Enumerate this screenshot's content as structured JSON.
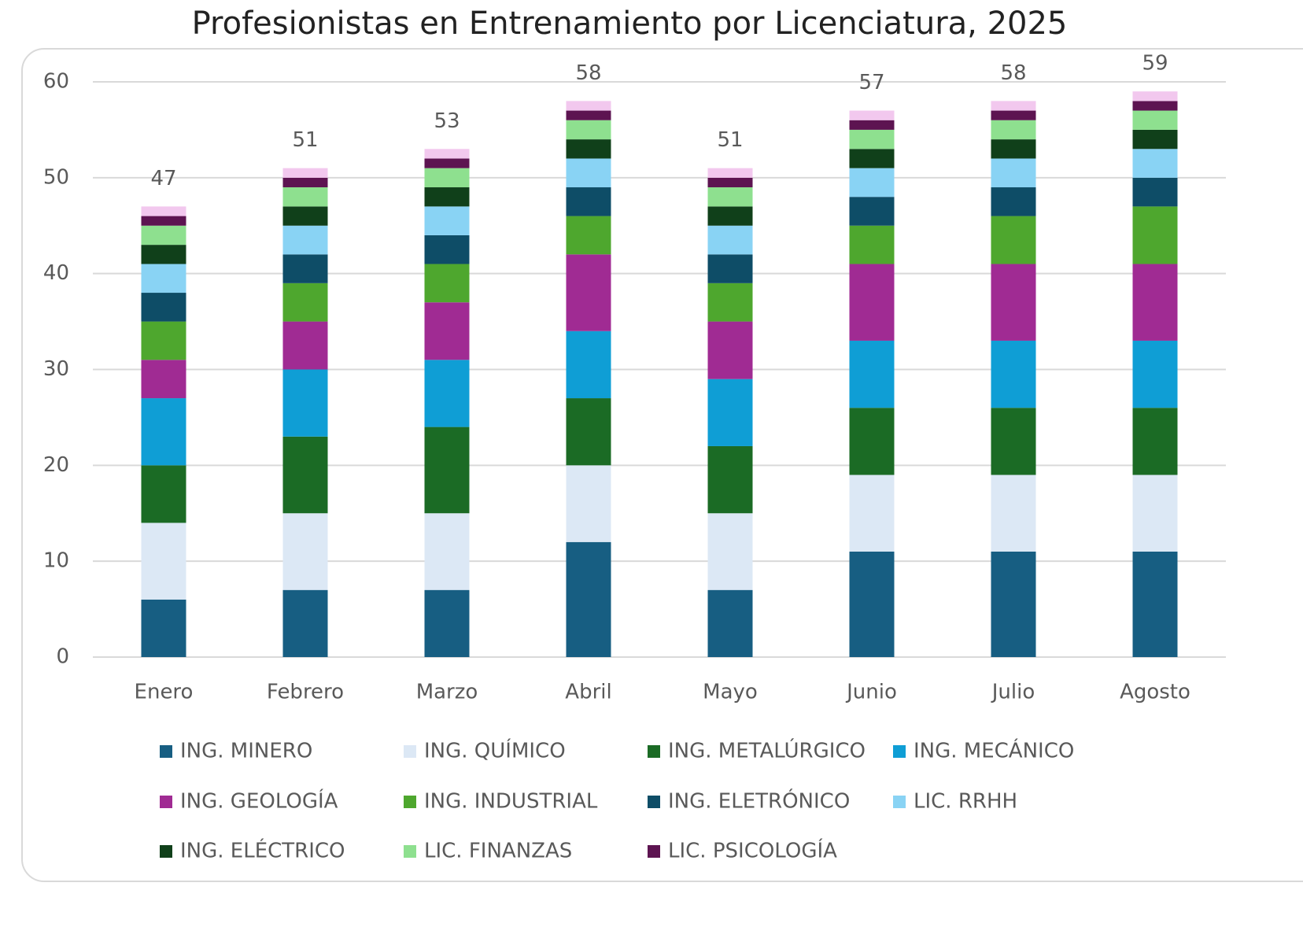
{
  "chart_data": {
    "type": "stacked_bar",
    "title": "Profesionistas en Entrenamiento por Licenciatura, 2025",
    "categories": [
      "Enero",
      "Febrero",
      "Marzo",
      "Abril",
      "Mayo",
      "Junio",
      "Julio",
      "Agosto"
    ],
    "series": [
      {
        "name": "ING. MINERO",
        "color": "#175e82",
        "values": [
          6,
          7,
          7,
          12,
          7,
          11,
          11,
          11
        ]
      },
      {
        "name": "ING. QUÍMICO",
        "color": "#dce8f5",
        "values": [
          8,
          8,
          8,
          8,
          8,
          8,
          8,
          8
        ]
      },
      {
        "name": "ING. METALÚRGICO",
        "color": "#1b6b25",
        "values": [
          6,
          8,
          9,
          7,
          7,
          7,
          7,
          7
        ]
      },
      {
        "name": "ING. MECÁNICO",
        "color": "#0f9ed5",
        "values": [
          7,
          7,
          7,
          7,
          7,
          7,
          7,
          7
        ]
      },
      {
        "name": "ING. GEOLOGÍA",
        "color": "#a02b93",
        "values": [
          4,
          5,
          6,
          8,
          6,
          8,
          8,
          8
        ]
      },
      {
        "name": "ING. INDUSTRIAL",
        "color": "#4ea72e",
        "values": [
          4,
          4,
          4,
          4,
          4,
          4,
          5,
          6
        ]
      },
      {
        "name": "ING. ELETRÓNICO",
        "color": "#0e4d67",
        "values": [
          3,
          3,
          3,
          3,
          3,
          3,
          3,
          3
        ]
      },
      {
        "name": "LIC. RRHH",
        "color": "#89d3f4",
        "values": [
          3,
          3,
          3,
          3,
          3,
          3,
          3,
          3
        ]
      },
      {
        "name": "ING. ELÉCTRICO",
        "color": "#10401a",
        "values": [
          2,
          2,
          2,
          2,
          2,
          2,
          2,
          2
        ]
      },
      {
        "name": "LIC. FINANZAS",
        "color": "#8ee08f",
        "values": [
          2,
          2,
          2,
          2,
          2,
          2,
          2,
          2
        ]
      },
      {
        "name": "LIC. PSICOLOGÍA",
        "color": "#5d1451",
        "values": [
          1,
          1,
          1,
          1,
          1,
          1,
          1,
          1
        ]
      },
      {
        "color": "#f2c8ee",
        "values": [
          1,
          1,
          1,
          1,
          1,
          1,
          1,
          1
        ]
      }
    ],
    "totals": [
      47,
      51,
      53,
      58,
      51,
      57,
      58,
      59
    ],
    "ylim": [
      0,
      60
    ],
    "yticks": [
      0,
      10,
      20,
      30,
      40,
      50,
      60
    ],
    "grid": true
  }
}
